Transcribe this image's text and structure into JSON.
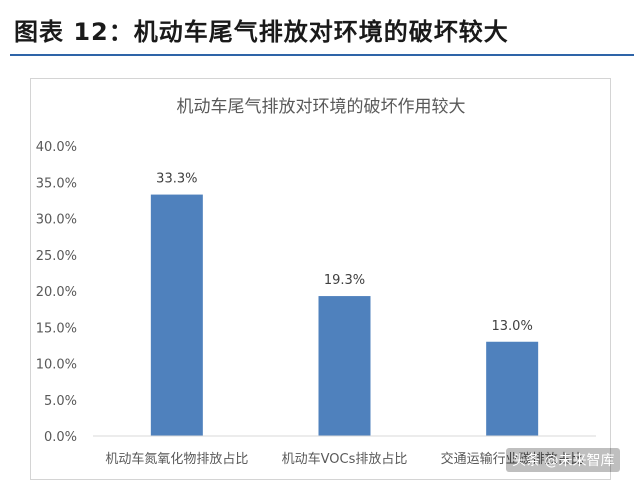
{
  "figure": {
    "title": "图表 12：机动车尾气排放对环境的破坏较大"
  },
  "watermark": "头条 @未来智库",
  "colors": {
    "bar": "#4f81bd",
    "title_rule": "#2e64a8",
    "axis_text": "#595959"
  },
  "chart_data": {
    "type": "bar",
    "title": "机动车尾气排放对环境的破坏作用较大",
    "categories": [
      "机动车氮氧化物排放占比",
      "机动车VOCs排放占比",
      "交通运输行业碳排放占比"
    ],
    "values": [
      33.3,
      19.3,
      13.0
    ],
    "data_labels": [
      "33.3%",
      "19.3%",
      "13.0%"
    ],
    "yticks": [
      "0.0%",
      "5.0%",
      "10.0%",
      "15.0%",
      "20.0%",
      "25.0%",
      "30.0%",
      "35.0%",
      "40.0%"
    ],
    "ylim": [
      0,
      40
    ],
    "grid": false,
    "legend": "none"
  }
}
